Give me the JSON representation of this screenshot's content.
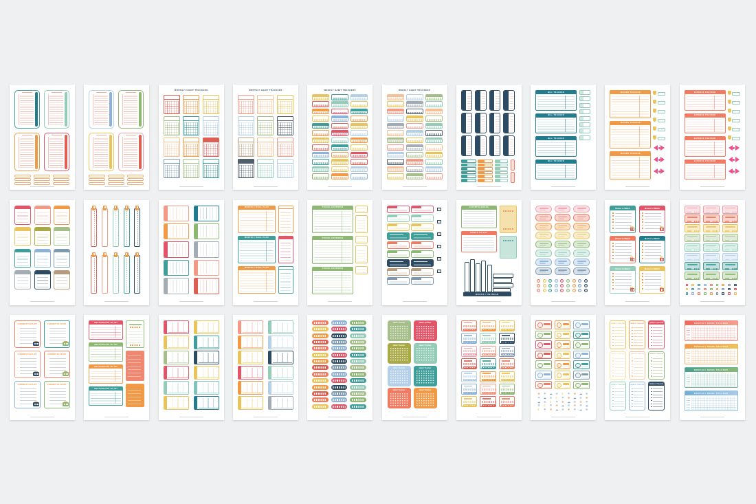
{
  "product": {
    "description": "Grid of 30 printable planner sticker pages on gray background"
  },
  "palette": {
    "red": "#dd5f54",
    "crimson": "#e25568",
    "pink": "#f2a0ab",
    "coral": "#ee7b62",
    "salmon": "#f39a86",
    "peach": "#f6c096",
    "orange": "#f09a48",
    "gold": "#e9c35c",
    "paleYellow": "#f5e0a6",
    "olive": "#a9aa45",
    "sage": "#a6bf8a",
    "green": "#8db873",
    "mint": "#93ccb7",
    "teal": "#3f9e99",
    "lightTeal": "#7fc4bd",
    "darkTeal": "#237c8d",
    "lightBlue": "#b4cfe8",
    "blue": "#8cb2da",
    "steel": "#7e9ab3",
    "navy": "#2d4a63",
    "gray": "#a3acb5",
    "charcoal": "#4f5f6b",
    "tan": "#b79b7d",
    "ink": "#3d4a57",
    "footer": "#d4d4d4",
    "bow": "#ee4f8b",
    "bg": "#eff0f1"
  },
  "icons": {
    "sun": "☀",
    "umbrella": "☂",
    "cloud": "☁",
    "snow": "❆",
    "moon": "☾",
    "star": "★",
    "note": "♪"
  },
  "titles": {
    "monthly_habit": "MONTHLY HABIT TRACKERS",
    "weekly_habit": "WEEKLY HABIT TRACKERS",
    "bill": "BILL TRACKER",
    "income": "INCOME TRACKER",
    "expense": "EXPENSE TRACKER",
    "meal_plan": "MONTHLY MEAL PLAN",
    "travel": "TRAVEL EXPENSES",
    "current_read": "CURRENT READ",
    "favorite_books": "FAVORITE BOOKS",
    "books_to_buy": "BOOKS TO BUY",
    "books_read": "BOOKS I'VE READ",
    "shows": "Shows to Watch",
    "movies": "Movies to Watch",
    "playlist": "CURRENT PLAYLIST",
    "restaurants": "RESTAURANTS TO TRY",
    "habit_script": "Habit Tracker",
    "weekly_tracker": "WEEKLY TRACKER",
    "mood": "MONTHLY MOOD TRACKER"
  },
  "pages": [
    {
      "id": 1,
      "type": "notebooks",
      "items": [
        [
          "teal",
          "darkTeal"
        ],
        [
          "mint",
          "mint"
        ],
        [
          "orange",
          "orange"
        ],
        [
          "crimson",
          "red"
        ]
      ]
    },
    {
      "id": 2,
      "type": "notebooks",
      "items": [
        [
          "lightBlue",
          "blue"
        ],
        [
          "green",
          "green"
        ],
        [
          "gold",
          "gold"
        ],
        [
          "pink",
          "red"
        ]
      ]
    },
    {
      "id": 3,
      "type": "monthlyGrids",
      "titleKey": "monthly_habit",
      "filled": [
        8
      ],
      "cells": [
        "red",
        "orange",
        "gold",
        "sage",
        "teal",
        "lightBlue",
        "peach",
        "orange",
        "red",
        "steel",
        "sage",
        "teal"
      ]
    },
    {
      "id": 4,
      "type": "monthlyGrids",
      "titleKey": "monthly_habit",
      "filled": [
        9
      ],
      "cells": [
        "salmon",
        "peach",
        "gold",
        "lightBlue",
        "sage",
        "charcoal",
        "tan",
        "peach",
        "salmon",
        "charcoal",
        "mint",
        "lightBlue"
      ]
    },
    {
      "id": 5,
      "type": "weeklyStrips",
      "titleKey": "weekly_habit",
      "cells": [
        "gold",
        "teal",
        "lightBlue",
        "red",
        "mint",
        "gold",
        "orange",
        "crimson",
        "teal",
        "gold",
        "blue",
        "orange",
        "teal",
        "red",
        "gold",
        "orange",
        "crimson",
        "lightBlue",
        "gold",
        "mint",
        "orange",
        "red",
        "teal",
        "gold",
        "blue",
        "orange",
        "crimson",
        "teal",
        "gold",
        "red",
        "mint",
        "gold",
        "lightBlue",
        "green",
        "orange",
        "blue"
      ]
    },
    {
      "id": 6,
      "type": "weeklyStrips",
      "titleKey": "weekly_habit",
      "cells": [
        "peach",
        "lightBlue",
        "sage",
        "gold",
        "gray",
        "mint",
        "salmon",
        "charcoal",
        "peach",
        "lightBlue",
        "gold",
        "sage",
        "gray",
        "salmon",
        "mint",
        "peach",
        "lightBlue",
        "charcoal",
        "sage",
        "gold",
        "mint",
        "salmon",
        "gray",
        "peach",
        "lightBlue",
        "sage",
        "gold",
        "charcoal",
        "salmon",
        "mint",
        "peach",
        "gray",
        "lightBlue",
        "gold",
        "sage",
        "salmon"
      ]
    },
    {
      "id": 7,
      "type": "navTabs",
      "tab": "navy",
      "cols": [
        "teal",
        "orange",
        "mint"
      ],
      "tall": "coral"
    },
    {
      "id": 8,
      "type": "stackedTables",
      "titleKey": "bill",
      "color": "darkTeal",
      "tables": 4,
      "side": "labels"
    },
    {
      "id": 9,
      "type": "stackedTables",
      "titleKey": "income",
      "color": "orange",
      "tables": 3,
      "side": "money"
    },
    {
      "id": 10,
      "type": "stackedTables",
      "titleKey": "expense",
      "color": "coral",
      "tables": 4,
      "side": "money"
    },
    {
      "id": 11,
      "type": "noteGrid",
      "cells": [
        "crimson",
        "salmon",
        "orange",
        "gold",
        "olive",
        "sage",
        "teal",
        "blue",
        "steel",
        "gray",
        "navy",
        "tan"
      ]
    },
    {
      "id": 12,
      "type": "clipBookmarks",
      "cells": [
        "red",
        "salmon",
        "mint",
        "teal",
        "navy"
      ],
      "clip": "orange"
    },
    {
      "id": 13,
      "type": "sideTabCards",
      "rows": [
        [
          "salmon",
          "darkTeal"
        ],
        [
          "orange",
          "green"
        ],
        [
          "crimson",
          "gray"
        ],
        [
          "teal",
          "salmon"
        ],
        [
          "gray",
          "red"
        ]
      ]
    },
    {
      "id": 14,
      "type": "planTables",
      "titleKey": "meal_plan",
      "heads": [
        "orange",
        "teal",
        "orange"
      ],
      "side": [
        "orange",
        "crimson",
        "teal"
      ]
    },
    {
      "id": 15,
      "type": "stackedTables",
      "titleKey": "travel",
      "color": "green",
      "tables": 3,
      "side": "cards",
      "sideColor": "gold"
    },
    {
      "id": 16,
      "type": "readStickers",
      "titleKey": "current_read",
      "filled": [
        3,
        6
      ],
      "rows": [
        "crimson",
        "mint",
        "gold",
        "teal",
        "coral",
        "green",
        "navy",
        "tan",
        "steel"
      ]
    },
    {
      "id": 17,
      "type": "booksPage",
      "t1Key": "favorite_books",
      "t2Key": "books_to_buy",
      "shelfKey": "books_read",
      "t1": "green",
      "t2": "coral",
      "c1": "gold",
      "c2": "mint",
      "ink": "navy"
    },
    {
      "id": 18,
      "type": "tickets",
      "rows": [
        "pink",
        "coral",
        "orange",
        "gold",
        "green",
        "mint",
        "blue",
        "steel"
      ],
      "iconColors": [
        "coral",
        "gold",
        "teal",
        "blue",
        "crimson",
        "green",
        "orange",
        "steel",
        "navy"
      ]
    },
    {
      "id": 19,
      "type": "watchCards",
      "cards": [
        [
          "teal",
          "shows"
        ],
        [
          "crimson",
          "movies"
        ],
        [
          "coral",
          "shows"
        ],
        [
          "darkTeal",
          "movies"
        ],
        [
          "mint",
          "shows"
        ],
        [
          "gold",
          "movies"
        ]
      ]
    },
    {
      "id": 20,
      "type": "watchStickers",
      "rows": [
        "pink",
        "coral",
        "gold",
        "sage",
        "mint",
        "lightBlue",
        "teal",
        "green"
      ],
      "iconColors": [
        "crimson",
        "gold",
        "teal",
        "blue",
        "coral",
        "green",
        "orange",
        "steel",
        "navy"
      ]
    },
    {
      "id": 21,
      "type": "playlistCards",
      "titleKey": "playlist",
      "cards": [
        "coral",
        "teal",
        "salmon",
        "coral",
        "blue",
        "green"
      ]
    },
    {
      "id": 22,
      "type": "restaurants",
      "titleKey": "restaurants",
      "tables": [
        "crimson",
        "green",
        "orange",
        "teal"
      ],
      "side": [
        "green",
        "coral",
        "orange"
      ]
    },
    {
      "id": 23,
      "type": "dividedBoxes",
      "rows": [
        [
          "crimson",
          "gold"
        ],
        [
          "gold",
          "teal"
        ],
        [
          "sage",
          "navy"
        ],
        [
          "crimson",
          "gold"
        ],
        [
          "mint",
          "lightTeal"
        ],
        [
          "gold",
          "darkTeal"
        ]
      ]
    },
    {
      "id": 24,
      "type": "dividedBoxes",
      "rows": [
        [
          "salmon",
          "mint"
        ],
        [
          "orange",
          "lightBlue"
        ],
        [
          "gold",
          "navy"
        ],
        [
          "crimson",
          "mint"
        ],
        [
          "orange",
          "lightBlue"
        ],
        [
          "gold",
          "gray"
        ]
      ]
    },
    {
      "id": 25,
      "type": "pillStrips",
      "cells": [
        "coral",
        "blue",
        "green",
        "gold",
        "crimson",
        "teal",
        "orange",
        "navy",
        "mint",
        "red",
        "steel",
        "sage",
        "coral",
        "blue",
        "green",
        "gold",
        "crimson",
        "teal",
        "orange",
        "navy",
        "mint",
        "red",
        "steel",
        "sage",
        "coral",
        "blue",
        "green",
        "gold",
        "crimson",
        "teal",
        "orange",
        "navy",
        "mint",
        "red",
        "steel",
        "sage",
        "coral",
        "blue",
        "green",
        "gold",
        "crimson",
        "teal"
      ]
    },
    {
      "id": 26,
      "type": "dotSquares",
      "titleKey": "habit_script",
      "cells": [
        "sage",
        "crimson",
        "olive",
        "mint",
        "lightBlue",
        "teal",
        "coral",
        "orange"
      ]
    },
    {
      "id": 27,
      "type": "habitWeek",
      "cells": [
        "coral",
        "orange",
        "gold",
        "blue",
        "mint",
        "navy",
        "pink",
        "salmon",
        "steel",
        "red",
        "teal",
        "coral",
        "lightBlue",
        "orange",
        "gold",
        "blue",
        "salmon",
        "green",
        "gold",
        "red",
        "coral"
      ]
    },
    {
      "id": 28,
      "type": "goalStickers",
      "cells": [
        "coral",
        "orange",
        "blue",
        "green",
        "gold",
        "teal",
        "crimson",
        "orange",
        "green",
        "red",
        "gold",
        "blue",
        "green",
        "orange",
        "teal",
        "blue",
        "gold",
        "steel",
        "coral",
        "gold",
        "green"
      ],
      "weatherIcons": [
        "sun",
        "umbrella",
        "cloud",
        "snow",
        "moon",
        "umbrella",
        "sun",
        "cloud",
        "snow"
      ],
      "weatherColors": [
        "orange",
        "blue",
        "steel",
        "lightBlue",
        "gold",
        "blue",
        "orange",
        "steel",
        "lightBlue"
      ]
    },
    {
      "id": 29,
      "type": "verticalCards",
      "titleKey": "weekly_tracker",
      "cells": [
        [
          "gold",
          0
        ],
        [
          "orange",
          0
        ],
        [
          "crimson",
          1
        ],
        [
          "paleYellow",
          0
        ],
        [
          "peach",
          0
        ],
        [
          "green",
          0
        ],
        [
          "mint",
          0
        ],
        [
          "blue",
          0
        ],
        [
          "navy",
          1
        ]
      ]
    },
    {
      "id": 30,
      "type": "moodTracker",
      "titleKey": "mood",
      "heads": [
        [
          "#ef6a5e",
          "#f2a38c"
        ],
        [
          "#f09a49",
          "#ecc45c"
        ],
        [
          "#4ba08a",
          "#8db874"
        ],
        [
          "#74aed6",
          "#a8cbe8"
        ]
      ]
    }
  ]
}
